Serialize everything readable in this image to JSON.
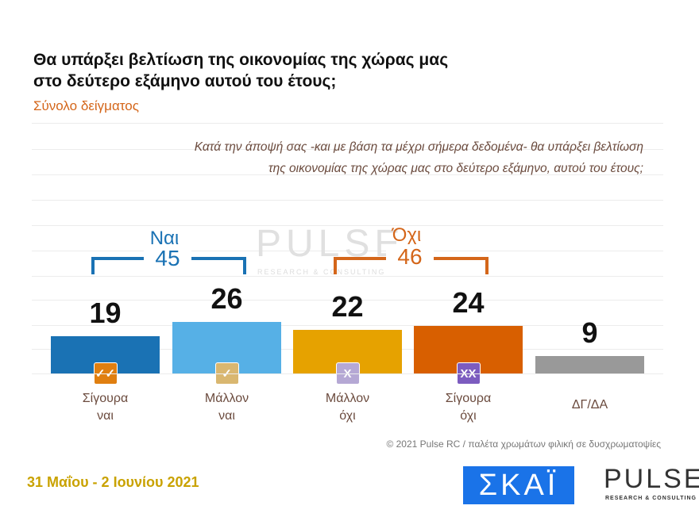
{
  "title_line1": "Θα υπάρξει βελτίωση της οικονομίας της χώρας μας",
  "title_line2": "στο δεύτερο εξάμηνο αυτού του έτους;",
  "subtitle": "Σύνολο δείγματος",
  "question_line1": "Κατά την άποψή σας -και με βάση τα μέχρι σήμερα δεδομένα- θα υπάρξει βελτίωση",
  "question_line2": "της οικονομίας της χώρας μας στο δεύτερο εξάμηνο, αυτού του έτους;",
  "chart_data": {
    "type": "bar",
    "categories": [
      "Σίγουρα ναι",
      "Μάλλον ναι",
      "Μάλλον όχι",
      "Σίγουρα όχι",
      "ΔΓ/ΔΑ"
    ],
    "category_lines": [
      [
        "Σίγουρα",
        "ναι"
      ],
      [
        "Μάλλον",
        "ναι"
      ],
      [
        "Μάλλον",
        "όχι"
      ],
      [
        "Σίγουρα",
        "όχι"
      ],
      [
        "ΔΓ/ΔΑ",
        ""
      ]
    ],
    "values": [
      19,
      26,
      22,
      24,
      9
    ],
    "value_labels": [
      "19",
      "26",
      "22",
      "24",
      "9"
    ],
    "colors": [
      "#1a72b4",
      "#56b0e6",
      "#e6a200",
      "#d85f00",
      "#999999"
    ],
    "icons": [
      {
        "name": "double-check-icon",
        "glyph": "✓✓",
        "color": "#e07f10"
      },
      {
        "name": "check-icon",
        "glyph": "✓",
        "color": "#d9b770"
      },
      {
        "name": "x-icon",
        "glyph": "X",
        "color": "#b5a8d4"
      },
      {
        "name": "double-x-icon",
        "glyph": "XX",
        "color": "#7c5cbf"
      },
      null
    ],
    "groups": [
      {
        "label": "Ναι",
        "total": "45",
        "color": "#1a72b4"
      },
      {
        "label": "Όχι",
        "total": "46",
        "color": "#d4661a"
      }
    ],
    "ylim": [
      0,
      100
    ],
    "grid": true
  },
  "footer": "© 2021 Pulse RC  /  παλέτα χρωμάτων φιλική σε δυσχρωματοψίες",
  "date": "31 Μαΐου - 2 Ιουνίου 2021",
  "logos": {
    "skai": "ΣΚΑΪ",
    "pulse": "PULSE",
    "pulse_sub": "RESEARCH & CONSULTING"
  }
}
